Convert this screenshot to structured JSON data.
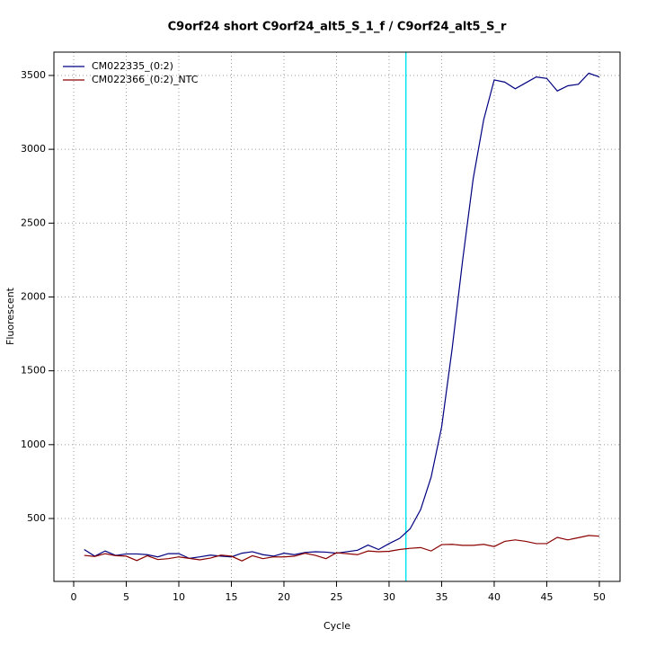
{
  "chart_data": {
    "type": "line",
    "title": "C9orf24 short C9orf24_alt5_S_1_f / C9orf24_alt5_S_r",
    "x_label": "Cycle",
    "y_label": "Fluorescent",
    "x": [
      1,
      2,
      3,
      4,
      5,
      6,
      7,
      8,
      9,
      10,
      11,
      12,
      13,
      14,
      15,
      16,
      17,
      18,
      19,
      20,
      21,
      22,
      23,
      24,
      25,
      26,
      27,
      28,
      29,
      30,
      31,
      32,
      33,
      34,
      35,
      36,
      37,
      38,
      39,
      40,
      41,
      42,
      43,
      44,
      45,
      46,
      47,
      48,
      49,
      50
    ],
    "series": [
      {
        "name": "CM022335_(0:2)",
        "color": "#000080",
        "values": [
          290,
          245,
          280,
          250,
          260,
          260,
          255,
          240,
          262,
          262,
          230,
          240,
          252,
          245,
          240,
          265,
          275,
          255,
          245,
          265,
          255,
          270,
          275,
          272,
          265,
          275,
          285,
          320,
          290,
          330,
          365,
          430,
          560,
          780,
          1120,
          1650,
          2250,
          2800,
          3200,
          3470,
          3455,
          3410,
          3450,
          3490,
          3480,
          3395,
          3430,
          3440,
          3515,
          3490
        ]
      },
      {
        "name": "CM022366_(0:2)_NTC",
        "color": "#8b0000",
        "values": [
          250,
          243,
          262,
          248,
          245,
          215,
          248,
          222,
          228,
          240,
          230,
          220,
          232,
          252,
          245,
          213,
          248,
          228,
          240,
          240,
          245,
          265,
          250,
          228,
          268,
          262,
          255,
          280,
          275,
          278,
          290,
          298,
          303,
          280,
          323,
          325,
          318,
          318,
          325,
          310,
          345,
          355,
          345,
          330,
          330,
          372,
          355,
          370,
          385,
          380
        ]
      }
    ],
    "threshold_x": 31.6,
    "threshold_color": "#00e5ee",
    "xlim": [
      -1.88,
      51.97
    ],
    "ylim": [
      74,
      3658
    ],
    "xticks": [
      0,
      5,
      10,
      15,
      20,
      25,
      30,
      35,
      40,
      45,
      50
    ],
    "yticks": [
      500,
      1000,
      1500,
      2000,
      2500,
      3000,
      3500
    ],
    "grid": true,
    "legend": "top-left"
  }
}
